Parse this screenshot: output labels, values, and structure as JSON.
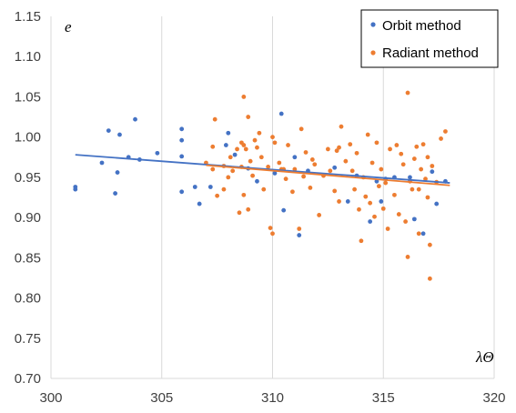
{
  "chart_data": {
    "type": "scatter",
    "xlabel": "λΘ",
    "ylabel": "e",
    "xlim": [
      300,
      320
    ],
    "ylim": [
      0.7,
      1.15
    ],
    "xticks": [
      300,
      305,
      310,
      315,
      320
    ],
    "yticks": [
      0.7,
      0.75,
      0.8,
      0.85,
      0.9,
      0.95,
      1.0,
      1.05,
      1.1,
      1.15
    ],
    "grid": "vertical",
    "legend_position": "top-right",
    "series": [
      {
        "name": "Orbit method",
        "color": "#4472C4",
        "points": [
          [
            301.1,
            0.935
          ],
          [
            301.1,
            0.938
          ],
          [
            302.3,
            0.968
          ],
          [
            302.6,
            1.008
          ],
          [
            302.9,
            0.93
          ],
          [
            303.0,
            0.956
          ],
          [
            303.1,
            1.003
          ],
          [
            303.5,
            0.975
          ],
          [
            303.8,
            1.022
          ],
          [
            304.0,
            0.972
          ],
          [
            304.8,
            0.98
          ],
          [
            305.9,
            1.01
          ],
          [
            305.9,
            0.996
          ],
          [
            305.9,
            0.976
          ],
          [
            305.9,
            0.932
          ],
          [
            306.5,
            0.938
          ],
          [
            306.7,
            0.917
          ],
          [
            307.2,
            0.938
          ],
          [
            307.9,
            0.99
          ],
          [
            308.0,
            1.005
          ],
          [
            308.3,
            0.978
          ],
          [
            308.9,
            0.961
          ],
          [
            309.3,
            0.945
          ],
          [
            310.1,
            0.955
          ],
          [
            310.4,
            1.029
          ],
          [
            310.5,
            0.909
          ],
          [
            311.0,
            0.975
          ],
          [
            311.2,
            0.878
          ],
          [
            311.6,
            0.958
          ],
          [
            312.8,
            0.962
          ],
          [
            313.4,
            0.92
          ],
          [
            313.8,
            0.952
          ],
          [
            314.4,
            0.895
          ],
          [
            314.7,
            0.945
          ],
          [
            314.9,
            0.92
          ],
          [
            315.1,
            0.948
          ],
          [
            315.5,
            0.95
          ],
          [
            316.2,
            0.95
          ],
          [
            316.4,
            0.898
          ],
          [
            316.8,
            0.88
          ],
          [
            317.2,
            0.957
          ],
          [
            317.4,
            0.917
          ],
          [
            317.8,
            0.945
          ]
        ],
        "trend": {
          "x": [
            301.1,
            318.0
          ],
          "y": [
            0.978,
            0.943
          ]
        }
      },
      {
        "name": "Radiant method",
        "color": "#ED7D31",
        "points": [
          [
            307.0,
            0.968
          ],
          [
            307.3,
            0.988
          ],
          [
            307.3,
            0.96
          ],
          [
            307.4,
            1.022
          ],
          [
            307.5,
            0.927
          ],
          [
            307.8,
            0.964
          ],
          [
            307.8,
            0.935
          ],
          [
            308.0,
            0.95
          ],
          [
            308.1,
            0.975
          ],
          [
            308.2,
            0.958
          ],
          [
            308.4,
            0.985
          ],
          [
            308.5,
            0.906
          ],
          [
            308.6,
            0.993
          ],
          [
            308.6,
            0.963
          ],
          [
            308.7,
            1.05
          ],
          [
            308.7,
            0.99
          ],
          [
            308.7,
            0.928
          ],
          [
            308.8,
            0.985
          ],
          [
            308.9,
            1.025
          ],
          [
            308.9,
            0.91
          ],
          [
            309.0,
            0.97
          ],
          [
            309.1,
            0.952
          ],
          [
            309.2,
            0.996
          ],
          [
            309.3,
            0.987
          ],
          [
            309.4,
            1.005
          ],
          [
            309.5,
            0.975
          ],
          [
            309.6,
            0.935
          ],
          [
            309.8,
            0.963
          ],
          [
            309.9,
            0.887
          ],
          [
            310.0,
            0.88
          ],
          [
            310.0,
            1.0
          ],
          [
            310.1,
            0.993
          ],
          [
            310.3,
            0.968
          ],
          [
            310.4,
            0.96
          ],
          [
            310.5,
            0.96
          ],
          [
            310.6,
            0.948
          ],
          [
            310.7,
            0.99
          ],
          [
            310.9,
            0.932
          ],
          [
            311.0,
            0.96
          ],
          [
            311.2,
            0.886
          ],
          [
            311.3,
            1.01
          ],
          [
            311.4,
            0.951
          ],
          [
            311.5,
            0.981
          ],
          [
            311.7,
            0.937
          ],
          [
            311.8,
            0.972
          ],
          [
            311.9,
            0.966
          ],
          [
            312.1,
            0.903
          ],
          [
            312.3,
            0.952
          ],
          [
            312.5,
            0.985
          ],
          [
            312.6,
            0.958
          ],
          [
            312.8,
            0.933
          ],
          [
            312.9,
            0.983
          ],
          [
            313.0,
            0.987
          ],
          [
            313.0,
            0.92
          ],
          [
            313.1,
            1.013
          ],
          [
            313.3,
            0.97
          ],
          [
            313.5,
            0.991
          ],
          [
            313.6,
            0.958
          ],
          [
            313.7,
            0.935
          ],
          [
            313.8,
            0.98
          ],
          [
            313.9,
            0.91
          ],
          [
            314.0,
            0.871
          ],
          [
            314.1,
            0.95
          ],
          [
            314.2,
            0.926
          ],
          [
            314.3,
            1.003
          ],
          [
            314.4,
            0.918
          ],
          [
            314.5,
            0.968
          ],
          [
            314.6,
            0.901
          ],
          [
            314.7,
            0.993
          ],
          [
            314.8,
            0.939
          ],
          [
            314.9,
            0.96
          ],
          [
            315.0,
            0.911
          ],
          [
            315.1,
            0.943
          ],
          [
            315.2,
            0.886
          ],
          [
            315.3,
            0.985
          ],
          [
            315.5,
            0.928
          ],
          [
            315.6,
            0.99
          ],
          [
            315.7,
            0.904
          ],
          [
            315.8,
            0.979
          ],
          [
            315.9,
            0.966
          ],
          [
            316.0,
            0.895
          ],
          [
            316.1,
            0.851
          ],
          [
            316.1,
            1.055
          ],
          [
            316.2,
            0.945
          ],
          [
            316.3,
            0.935
          ],
          [
            316.4,
            0.973
          ],
          [
            316.5,
            0.988
          ],
          [
            316.6,
            0.935
          ],
          [
            316.6,
            0.88
          ],
          [
            316.7,
            0.96
          ],
          [
            316.8,
            0.991
          ],
          [
            316.9,
            0.948
          ],
          [
            317.0,
            0.975
          ],
          [
            317.0,
            0.925
          ],
          [
            317.1,
            0.824
          ],
          [
            317.1,
            0.866
          ],
          [
            317.2,
            0.964
          ],
          [
            317.4,
            0.944
          ],
          [
            317.6,
            0.998
          ],
          [
            317.8,
            1.007
          ]
        ],
        "trend": {
          "x": [
            307.0,
            318.0
          ],
          "y": [
            0.965,
            0.94
          ]
        }
      }
    ]
  }
}
